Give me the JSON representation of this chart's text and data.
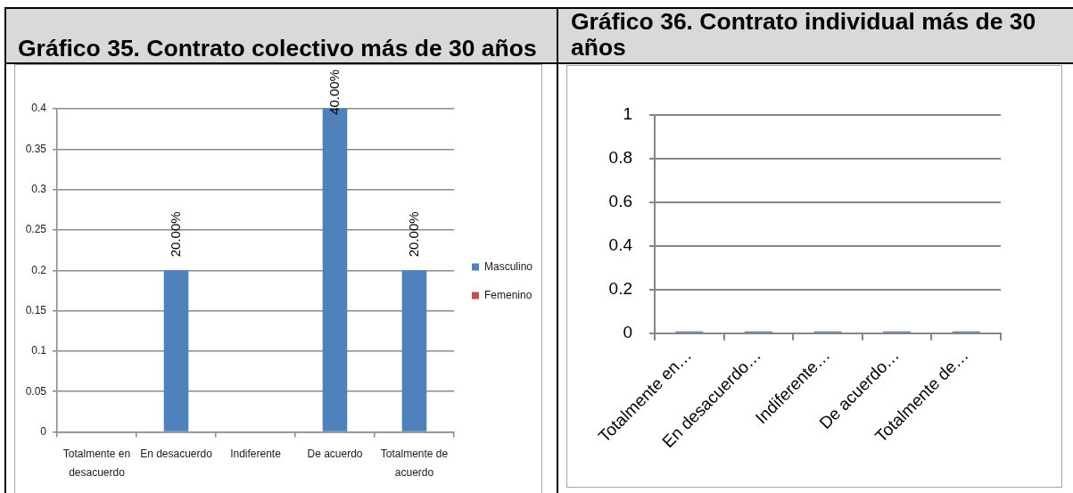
{
  "chart_data": [
    {
      "type": "bar",
      "title": "Gráfico 35. Contrato colectivo más de 30 años",
      "categories": [
        "Totalmente en desacuerdo",
        "En desacuerdo",
        "Indiferente",
        "De acuerdo",
        "Totalmente de acuerdo"
      ],
      "series": [
        {
          "name": "Masculino",
          "color": "#4f81bd",
          "values": [
            null,
            0.2,
            null,
            0.4,
            0.2
          ],
          "value_labels": [
            null,
            "20.00%",
            null,
            "40.00%",
            "20.00%"
          ]
        },
        {
          "name": "Femenino",
          "color": "#c0504d",
          "values": [
            null,
            null,
            null,
            null,
            null
          ]
        }
      ],
      "ylim": [
        0,
        0.4
      ],
      "yticks": [
        0,
        0.05,
        0.1,
        0.15,
        0.2,
        0.25,
        0.3,
        0.35,
        0.4
      ],
      "grid": "y",
      "legend": "right"
    },
    {
      "type": "bar",
      "title": "Gráfico 36. Contrato individual más de 30 años",
      "categories": [
        "Totalmente en…",
        "En desacuerdo…",
        "Indiferente…",
        "De acuerdo…",
        "Totalmente de…"
      ],
      "series": [
        {
          "color": "#3c6494",
          "values": [
            0,
            0,
            0,
            0,
            0
          ]
        }
      ],
      "ylim": [
        0,
        1
      ],
      "yticks": [
        0,
        0.2,
        0.4,
        0.6,
        0.8,
        1
      ],
      "grid": "y"
    }
  ]
}
